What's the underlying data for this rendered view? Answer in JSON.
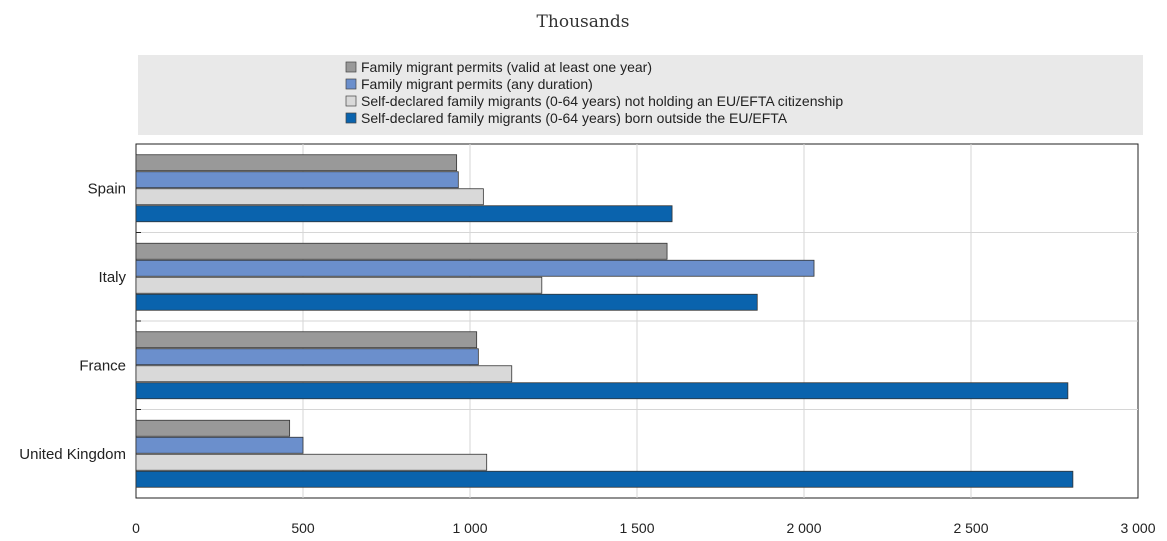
{
  "chart_data": {
    "type": "bar",
    "orientation": "horizontal",
    "subtitle": "Thousands",
    "categories": [
      "Spain",
      "Italy",
      "France",
      "United Kingdom"
    ],
    "series": [
      {
        "name": "Family migrant permits (valid at least one year)",
        "color": "#999999",
        "values": [
          960,
          1590,
          1020,
          460
        ]
      },
      {
        "name": "Family migrant permits (any duration)",
        "color": "#6b8fcc",
        "values": [
          965,
          2030,
          1025,
          500
        ]
      },
      {
        "name": "Self-declared family migrants (0-64 years) not holding an EU/EFTA citizenship",
        "color": "#d9d9d9",
        "values": [
          1040,
          1215,
          1125,
          1050
        ]
      },
      {
        "name": "Self-declared family migrants (0-64 years) born outside the EU/EFTA",
        "color": "#0a63ad",
        "values": [
          1605,
          1860,
          2790,
          2805
        ]
      }
    ],
    "xlim": [
      0,
      3000
    ],
    "xticks": [
      0,
      500,
      1000,
      1500,
      2000,
      2500,
      3000
    ],
    "xtick_labels": [
      "0",
      "500",
      "1 000",
      "1 500",
      "2 000",
      "2 500",
      "3 000"
    ],
    "grid": true,
    "legend_position": "top"
  }
}
